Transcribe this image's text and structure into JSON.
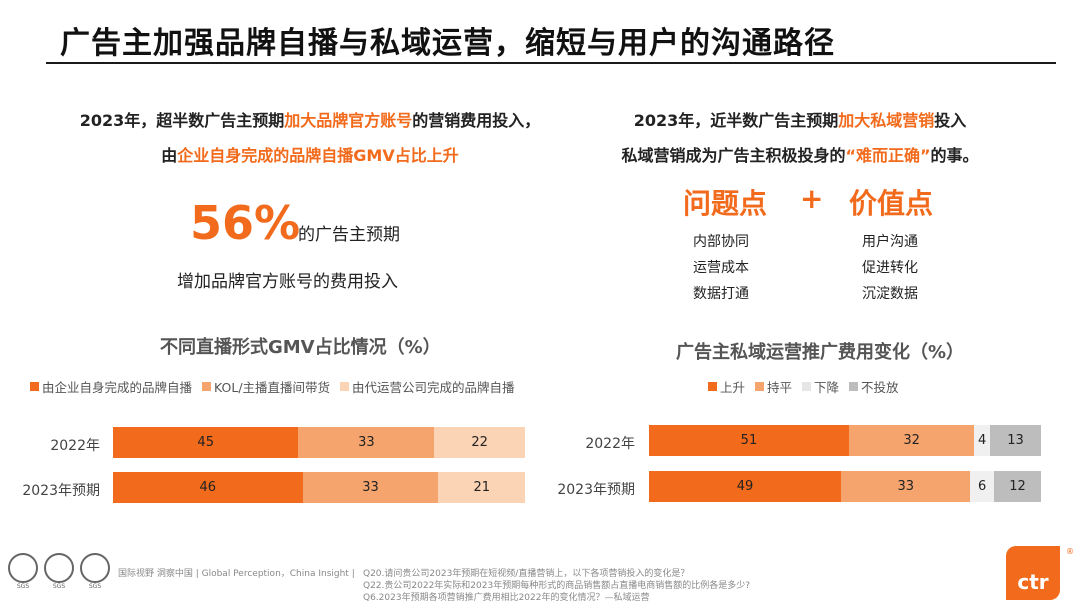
{
  "title": "广告主加强品牌自播与私域运营，缩短与用户的沟通路径",
  "left": {
    "line1_a": "2023年，超半数广告主预期",
    "line1_hl": "加大品牌官方账号",
    "line1_b": "的营销费用投入，",
    "line2_a": "由",
    "line2_hl": "企业自身完成的品牌自播GMV占比上升",
    "big_percent": "56%",
    "big_suffix": "的广告主预期",
    "sub": "增加品牌官方账号的费用投入"
  },
  "right": {
    "line1_a": "2023年，近半数广告主预期",
    "line1_hl": "加大私域营销",
    "line1_b": "投入",
    "line2_a": "私域营销成为广告主积极投身的",
    "line2_hl": "“难而正确”",
    "line2_b": "的事。",
    "problem_head": "问题点",
    "plus": "+",
    "value_head": "价值点",
    "problems": [
      "内部协同",
      "运营成本",
      "数据打通"
    ],
    "values": [
      "用户沟通",
      "促进转化",
      "沉淀数据"
    ]
  },
  "chart_data": [
    {
      "type": "bar",
      "stacked": true,
      "orientation": "horizontal",
      "title": "不同直播形式GMV占比情况（%）",
      "categories": [
        "2022年",
        "2023年预期"
      ],
      "series": [
        {
          "name": "由企业自身完成的品牌自播",
          "color": "#f26a1b",
          "values": [
            45,
            46
          ]
        },
        {
          "name": "KOL/主播直播间带货",
          "color": "#f6a46e",
          "values": [
            33,
            33
          ]
        },
        {
          "name": "由代运营公司完成的品牌自播",
          "color": "#fbd3b5",
          "values": [
            22,
            21
          ]
        }
      ],
      "legend": "top"
    },
    {
      "type": "bar",
      "stacked": true,
      "orientation": "horizontal",
      "title": "广告主私域运营推广费用变化（%）",
      "categories": [
        "2022年",
        "2023年预期"
      ],
      "series": [
        {
          "name": "上升",
          "color": "#f26a1b",
          "values": [
            51,
            49
          ]
        },
        {
          "name": "持平",
          "color": "#f6a46e",
          "values": [
            32,
            33
          ]
        },
        {
          "name": "下降",
          "color": "#f0f0f0",
          "values": [
            4,
            6
          ]
        },
        {
          "name": "不投放",
          "color": "#bdbdbd",
          "values": [
            13,
            12
          ]
        }
      ],
      "legend": "top"
    }
  ],
  "footer": {
    "source": "国际视野 洞察中国 | Global Perception，China Insight |",
    "q1": "Q20.请问贵公司2023年预期在短视频/直播营销上，以下各项营销投入的变化是？",
    "q2": "Q22.贵公司2022年实际和2023年预期每种形式的商品销售额占直播电商销售额的比例各是多少?",
    "q3": "Q6.2023年预期各项营销推广费用相比2022年的变化情况？—私域运营",
    "sgs_label": "SGS",
    "logo_text": "ctr",
    "reg_mark": "®"
  }
}
